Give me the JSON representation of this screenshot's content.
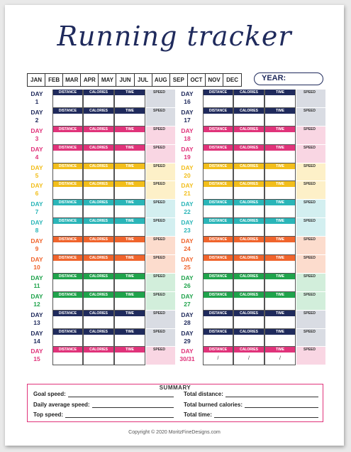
{
  "title": "Running tracker",
  "months": [
    "JAN",
    "FEB",
    "MAR",
    "APR",
    "MAY",
    "JUN",
    "JUL",
    "AUG",
    "SEP",
    "OCT",
    "NOV",
    "DEC"
  ],
  "year_label": "YEAR:",
  "headers": {
    "distance": "DISTANCE",
    "calories": "CALORIES",
    "time": "TIME",
    "speed": "SPEED"
  },
  "day_word": "DAY",
  "left_days": [
    {
      "num": "1",
      "color": "#1f2a5c",
      "tint": "#d9dce3"
    },
    {
      "num": "2",
      "color": "#1f2a5c",
      "tint": "#d9dce3"
    },
    {
      "num": "3",
      "color": "#e0337a",
      "tint": "#f9d6e3"
    },
    {
      "num": "4",
      "color": "#e0337a",
      "tint": "#f9d6e3"
    },
    {
      "num": "5",
      "color": "#f2be1b",
      "tint": "#fdf0c8"
    },
    {
      "num": "6",
      "color": "#f2be1b",
      "tint": "#fdf0c8"
    },
    {
      "num": "7",
      "color": "#2ab5b8",
      "tint": "#d3eff0"
    },
    {
      "num": "8",
      "color": "#2ab5b8",
      "tint": "#d3eff0"
    },
    {
      "num": "9",
      "color": "#f0642c",
      "tint": "#fcdccd"
    },
    {
      "num": "10",
      "color": "#f0642c",
      "tint": "#fcdccd"
    },
    {
      "num": "11",
      "color": "#1fa34b",
      "tint": "#d2eedb"
    },
    {
      "num": "12",
      "color": "#1fa34b",
      "tint": "#d2eedb"
    },
    {
      "num": "13",
      "color": "#1f2a5c",
      "tint": "#d9dce3"
    },
    {
      "num": "14",
      "color": "#1f2a5c",
      "tint": "#d9dce3"
    },
    {
      "num": "15",
      "color": "#e0337a",
      "tint": "#f9d6e3"
    }
  ],
  "right_days": [
    {
      "num": "16",
      "color": "#1f2a5c",
      "tint": "#d9dce3"
    },
    {
      "num": "17",
      "color": "#1f2a5c",
      "tint": "#d9dce3"
    },
    {
      "num": "18",
      "color": "#e0337a",
      "tint": "#f9d6e3"
    },
    {
      "num": "19",
      "color": "#e0337a",
      "tint": "#f9d6e3"
    },
    {
      "num": "20",
      "color": "#f2be1b",
      "tint": "#fdf0c8"
    },
    {
      "num": "21",
      "color": "#f2be1b",
      "tint": "#fdf0c8"
    },
    {
      "num": "22",
      "color": "#2ab5b8",
      "tint": "#d3eff0"
    },
    {
      "num": "23",
      "color": "#2ab5b8",
      "tint": "#d3eff0"
    },
    {
      "num": "24",
      "color": "#f0642c",
      "tint": "#fcdccd"
    },
    {
      "num": "25",
      "color": "#f0642c",
      "tint": "#fcdccd"
    },
    {
      "num": "26",
      "color": "#1fa34b",
      "tint": "#d2eedb"
    },
    {
      "num": "27",
      "color": "#1fa34b",
      "tint": "#d2eedb"
    },
    {
      "num": "28",
      "color": "#1f2a5c",
      "tint": "#d9dce3"
    },
    {
      "num": "29",
      "color": "#1f2a5c",
      "tint": "#d9dce3"
    },
    {
      "num": "30/31",
      "color": "#e0337a",
      "tint": "#f9d6e3",
      "slashes": true
    }
  ],
  "slash": "/",
  "summary": {
    "title": "SUMMARY",
    "goal_speed": "Goal speed:",
    "daily_avg_speed": "Daily average speed:",
    "top_speed": "Top speed:",
    "total_distance": "Total distance:",
    "total_calories": "Total burned calories:",
    "total_time": "Total time:"
  },
  "copyright": "Copyright © 2020 MoritzFineDesigns.com"
}
